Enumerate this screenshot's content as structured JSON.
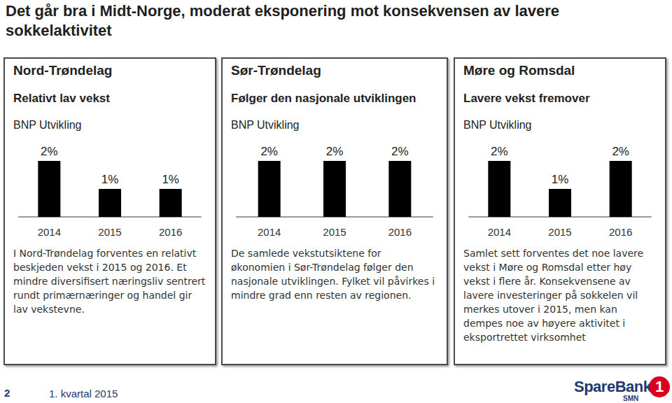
{
  "title": "Det går bra i Midt-Norge, moderat eksponering mot konsekvensen av lavere sokkelaktivitet",
  "chart_data": [
    {
      "type": "bar",
      "title": "Nord-Trøndelag",
      "subtitle": "Relativt lav vekst",
      "annotation": "BNP Utvikling",
      "categories": [
        "2014",
        "2015",
        "2016"
      ],
      "values": [
        2,
        1,
        1
      ],
      "value_labels": [
        "2%",
        "1%",
        "1%"
      ],
      "color": "#000000",
      "ylim": [
        0,
        2
      ],
      "tick_labels": "x",
      "data_labels": true,
      "grid": false,
      "caption": "I Nord-Trøndelag forventes en relativt beskjeden vekst i 2015 og 2016. Et mindre diversifisert næringsliv sentrert rundt primærnæringer og handel gir lav vekstevne."
    },
    {
      "type": "bar",
      "title": "Sør-Trøndelag",
      "subtitle": "Følger den nasjonale utviklingen",
      "annotation": "BNP Utvikling",
      "categories": [
        "2014",
        "2015",
        "2016"
      ],
      "values": [
        2,
        2,
        2
      ],
      "value_labels": [
        "2%",
        "2%",
        "2%"
      ],
      "color": "#000000",
      "ylim": [
        0,
        2
      ],
      "tick_labels": "x",
      "data_labels": true,
      "grid": false,
      "caption": "De samlede vekstutsiktene for økonomien i Sør-Trøndelag følger den nasjonale utviklingen. Fylket vil påvirkes i mindre grad enn resten av regionen."
    },
    {
      "type": "bar",
      "title": "Møre og Romsdal",
      "subtitle": "Lavere vekst fremover",
      "annotation": "BNP Utvikling",
      "categories": [
        "2014",
        "2015",
        "2016"
      ],
      "values": [
        2,
        1,
        2
      ],
      "value_labels": [
        "2%",
        "1%",
        "2%"
      ],
      "color": "#000000",
      "ylim": [
        0,
        2
      ],
      "tick_labels": "x",
      "data_labels": true,
      "grid": false,
      "caption": "Samlet sett forventes det noe lavere vekst i Møre og Romsdal etter høy vekst i flere år. Konsekvensene av lavere investeringer på sokkelen vil merkes utover i 2015, men kan dempes noe av høyere aktivitet i eksportrettet virksomhet"
    }
  ],
  "footer": {
    "page": "2",
    "text": "1. kvartal 2015"
  },
  "logo": {
    "name": "SpareBank",
    "number": "1",
    "sub": "SMN"
  }
}
